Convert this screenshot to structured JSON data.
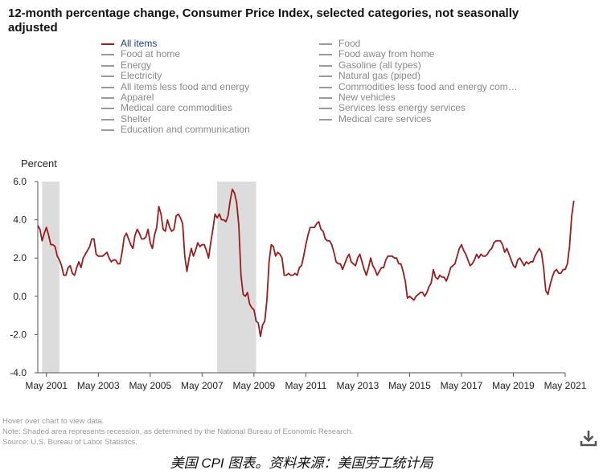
{
  "title": "12-month percentage change, Consumer Price Index, selected categories, not seasonally adjusted",
  "legend": {
    "left": [
      "All items",
      "Food at home",
      "Energy",
      "Electricity",
      "All items less food and energy",
      "Apparel",
      "Medical care commodities",
      "Shelter",
      "Education and communication"
    ],
    "right": [
      "Food",
      "Food away from home",
      "Gasoline (all types)",
      "Natural gas (piped)",
      "Commodities less food and energy com…",
      "New vehicles",
      "Services less energy services",
      "Medical care services"
    ]
  },
  "colors": {
    "series": "#9b1c1c",
    "recession": "#dcdcdc",
    "active_legend_text": "#1f3f8f",
    "inactive": "#9a9a9a"
  },
  "icons": {
    "download": "download-icon"
  },
  "notes": {
    "hover": "Hover over chart to view data.",
    "note": "Note: Shaded area represents recession, as determined by the National Bureau of Economic Research.",
    "source": "Source: U.S. Bureau of Labor Statistics."
  },
  "caption": "美国 CPI 图表。资料来源：美国劳工统计局",
  "chart_data": {
    "type": "line",
    "ylabel": "Percent",
    "ylim": [
      -4.0,
      6.0
    ],
    "yticks": [
      "6.0",
      "4.0",
      "2.0",
      "0.0",
      "-2.0",
      "-4.0"
    ],
    "xticks": [
      "May 2001",
      "May 2003",
      "May 2005",
      "May 2007",
      "May 2009",
      "May 2011",
      "May 2013",
      "May 2015",
      "May 2017",
      "May 2019",
      "May 2021"
    ],
    "x_range": [
      "Jan 2001",
      "May 2021"
    ],
    "recessions": [
      [
        "Mar 2001",
        "Nov 2001"
      ],
      [
        "Dec 2007",
        "Jun 2009"
      ]
    ],
    "series": [
      {
        "name": "All items",
        "start": "Jan 2001",
        "frequency": "monthly",
        "values": [
          3.7,
          3.5,
          2.9,
          3.3,
          3.6,
          3.2,
          2.7,
          2.7,
          2.6,
          2.1,
          1.9,
          1.6,
          1.1,
          1.1,
          1.5,
          1.6,
          1.2,
          1.1,
          1.5,
          1.8,
          1.5,
          2.0,
          2.2,
          2.4,
          2.6,
          3.0,
          3.0,
          2.2,
          2.1,
          2.1,
          2.1,
          2.2,
          2.3,
          2.0,
          1.8,
          1.9,
          1.9,
          1.7,
          1.7,
          2.3,
          3.1,
          3.3,
          3.0,
          2.7,
          2.5,
          3.2,
          3.5,
          3.3,
          3.0,
          3.0,
          3.1,
          3.5,
          2.8,
          2.5,
          3.2,
          3.6,
          4.7,
          4.3,
          3.5,
          3.4,
          4.0,
          3.6,
          3.4,
          3.5,
          4.2,
          4.3,
          4.1,
          3.8,
          2.1,
          1.3,
          2.0,
          2.5,
          2.1,
          2.4,
          2.8,
          2.6,
          2.7,
          2.7,
          2.4,
          2.0,
          2.8,
          3.5,
          4.3,
          4.1,
          4.3,
          4.0,
          4.0,
          3.9,
          4.2,
          5.0,
          5.6,
          5.4,
          4.9,
          3.7,
          1.1,
          0.1,
          0.0,
          0.2,
          -0.4,
          -0.6,
          -0.7,
          -1.3,
          -1.4,
          -2.1,
          -1.5,
          -1.3,
          -0.2,
          1.8,
          2.7,
          2.6,
          2.1,
          2.3,
          2.2,
          2.0,
          1.1,
          1.1,
          1.2,
          1.1,
          1.1,
          1.2,
          1.1,
          1.5,
          1.6,
          2.1,
          2.7,
          3.2,
          3.6,
          3.6,
          3.6,
          3.8,
          3.9,
          3.5,
          3.4,
          3.0,
          2.9,
          2.9,
          2.7,
          2.3,
          1.8,
          1.7,
          1.7,
          1.4,
          1.7,
          2.0,
          2.2,
          1.8,
          1.7,
          1.6,
          2.0,
          2.2,
          1.8,
          1.4,
          1.1,
          1.5,
          2.0,
          1.6,
          1.4,
          1.1,
          1.3,
          1.5,
          1.5,
          1.9,
          2.1,
          2.1,
          2.1,
          2.0,
          2.0,
          1.7,
          1.7,
          1.3,
          0.8,
          -0.1,
          0.0,
          -0.1,
          -0.2,
          0.0,
          0.1,
          0.2,
          0.2,
          0.0,
          0.2,
          0.5,
          0.7,
          1.4,
          1.0,
          0.9,
          1.1,
          1.0,
          1.0,
          0.8,
          1.1,
          1.5,
          1.6,
          1.7,
          2.1,
          2.5,
          2.7,
          2.4,
          2.2,
          1.9,
          1.6,
          1.7,
          1.9,
          2.2,
          2.0,
          2.2,
          2.1,
          2.1,
          2.2,
          2.4,
          2.5,
          2.8,
          2.9,
          2.9,
          2.9,
          2.7,
          2.3,
          2.5,
          2.2,
          1.9,
          1.6,
          1.5,
          1.9,
          2.0,
          1.8,
          1.6,
          1.8,
          1.7,
          1.8,
          1.8,
          2.1,
          2.3,
          2.5,
          2.3,
          1.5,
          0.3,
          0.1,
          0.6,
          1.0,
          1.3,
          1.4,
          1.2,
          1.2,
          1.4,
          1.4,
          1.7,
          2.6,
          4.2,
          5.0
        ]
      }
    ]
  }
}
